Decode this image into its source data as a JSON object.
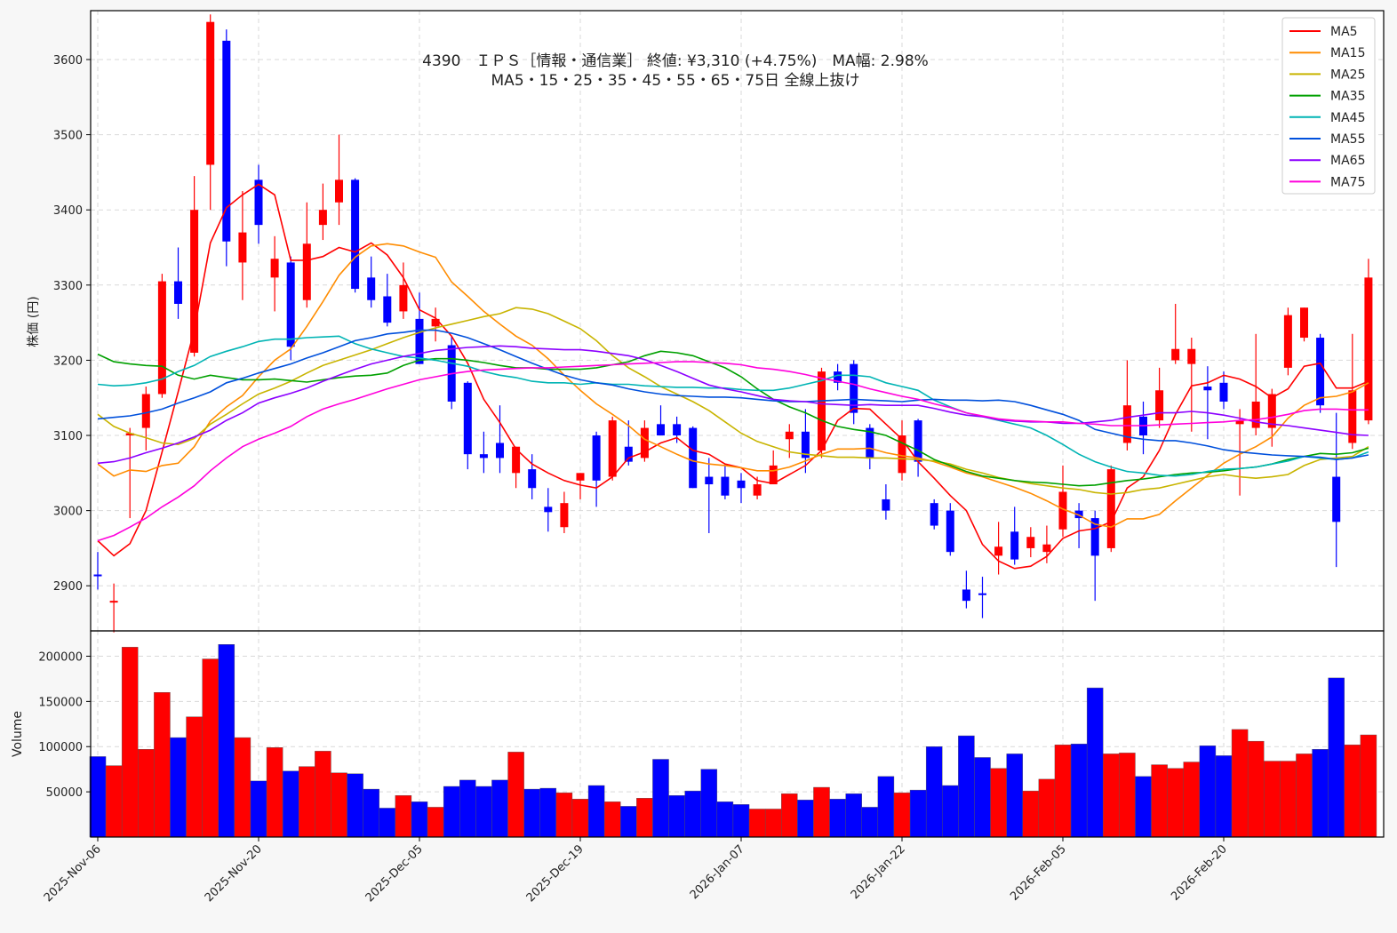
{
  "chart_data": {
    "type": "candlestick",
    "title_line1": "4390　ＩＰＳ［情報・通信業］ 終値: ¥3,310 (+4.75%)　MA幅: 2.98%",
    "title_line2": "MA5・15・25・35・45・55・65・75日 全線上抜け",
    "ylabel_price": "株価 (円)",
    "ylabel_volume": "Volume",
    "price_ylim": [
      2840,
      3665
    ],
    "volume_ylim": [
      0,
      228000
    ],
    "price_ticks": [
      2900,
      3000,
      3100,
      3200,
      3300,
      3400,
      3500,
      3600
    ],
    "volume_ticks": [
      50000,
      100000,
      150000,
      200000
    ],
    "volume_tick_labels": [
      "50000",
      "100000",
      "150000",
      "200000"
    ],
    "x_ticks": [
      {
        "index": 0,
        "label": "2025-Nov-06"
      },
      {
        "index": 10,
        "label": "2025-Nov-20"
      },
      {
        "index": 20,
        "label": "2025-Dec-05"
      },
      {
        "index": 30,
        "label": "2025-Dec-19"
      },
      {
        "index": 40,
        "label": "2026-Jan-07"
      },
      {
        "index": 50,
        "label": "2026-Jan-22"
      },
      {
        "index": 60,
        "label": "2026-Feb-05"
      },
      {
        "index": 70,
        "label": "2026-Feb-20"
      }
    ],
    "legend_position": "top-right",
    "grid": true,
    "up_color": "#ff0000",
    "down_color": "#0000ff",
    "ohlc": [
      [
        2915,
        2945,
        2895,
        2913
      ],
      [
        2880,
        2903,
        2838,
        2880
      ],
      [
        3100,
        3110,
        2990,
        3103
      ],
      [
        3110,
        3165,
        3080,
        3155
      ],
      [
        3155,
        3315,
        3150,
        3305
      ],
      [
        3305,
        3350,
        3255,
        3275
      ],
      [
        3210,
        3445,
        3205,
        3400
      ],
      [
        3460,
        3660,
        3400,
        3650
      ],
      [
        3625,
        3640,
        3325,
        3358
      ],
      [
        3330,
        3425,
        3280,
        3370
      ],
      [
        3440,
        3460,
        3355,
        3380
      ],
      [
        3310,
        3365,
        3265,
        3335
      ],
      [
        3330,
        3338,
        3200,
        3218
      ],
      [
        3280,
        3410,
        3270,
        3355
      ],
      [
        3380,
        3435,
        3360,
        3400
      ],
      [
        3410,
        3500,
        3380,
        3440
      ],
      [
        3440,
        3442,
        3290,
        3295
      ],
      [
        3310,
        3338,
        3270,
        3280
      ],
      [
        3285,
        3315,
        3245,
        3250
      ],
      [
        3265,
        3330,
        3255,
        3300
      ],
      [
        3255,
        3290,
        3195,
        3195
      ],
      [
        3245,
        3270,
        3225,
        3255
      ],
      [
        3220,
        3232,
        3135,
        3145
      ],
      [
        3170,
        3172,
        3055,
        3075
      ],
      [
        3075,
        3105,
        3050,
        3070
      ],
      [
        3090,
        3140,
        3050,
        3070
      ],
      [
        3050,
        3085,
        3030,
        3085
      ],
      [
        3055,
        3075,
        3015,
        3030
      ],
      [
        3005,
        3030,
        2972,
        2998
      ],
      [
        2978,
        3025,
        2970,
        3010
      ],
      [
        3040,
        3050,
        3015,
        3050
      ],
      [
        3100,
        3105,
        3005,
        3040
      ],
      [
        3045,
        3125,
        3040,
        3120
      ],
      [
        3085,
        3120,
        3060,
        3065
      ],
      [
        3070,
        3120,
        3065,
        3110
      ],
      [
        3115,
        3140,
        3100,
        3100
      ],
      [
        3115,
        3125,
        3090,
        3100
      ],
      [
        3110,
        3112,
        3030,
        3030
      ],
      [
        3045,
        3070,
        2970,
        3035
      ],
      [
        3045,
        3060,
        3015,
        3020
      ],
      [
        3040,
        3050,
        3010,
        3030
      ],
      [
        3020,
        3045,
        3015,
        3035
      ],
      [
        3035,
        3080,
        3035,
        3060
      ],
      [
        3095,
        3115,
        3070,
        3105
      ],
      [
        3105,
        3135,
        3050,
        3070
      ],
      [
        3080,
        3190,
        3070,
        3185
      ],
      [
        3185,
        3195,
        3160,
        3170
      ],
      [
        3195,
        3200,
        3115,
        3130
      ],
      [
        3110,
        3115,
        3055,
        3070
      ],
      [
        3015,
        3035,
        2988,
        3000
      ],
      [
        3050,
        3120,
        3040,
        3100
      ],
      [
        3120,
        3122,
        3045,
        3065
      ],
      [
        3010,
        3015,
        2975,
        2980
      ],
      [
        3000,
        3010,
        2940,
        2945
      ],
      [
        2895,
        2920,
        2870,
        2880
      ],
      [
        2890,
        2912,
        2857,
        2888
      ],
      [
        2940,
        2985,
        2915,
        2952
      ],
      [
        2972,
        3005,
        2928,
        2935
      ],
      [
        2950,
        2978,
        2938,
        2965
      ],
      [
        2945,
        2980,
        2930,
        2955
      ],
      [
        2975,
        3060,
        2965,
        3025
      ],
      [
        3000,
        3010,
        2950,
        2990
      ],
      [
        2990,
        3000,
        2880,
        2940
      ],
      [
        2950,
        3060,
        2945,
        3055
      ],
      [
        3090,
        3200,
        3080,
        3140
      ],
      [
        3125,
        3145,
        3075,
        3100
      ],
      [
        3120,
        3190,
        3110,
        3160
      ],
      [
        3200,
        3275,
        3195,
        3215
      ],
      [
        3195,
        3230,
        3105,
        3215
      ],
      [
        3165,
        3192,
        3095,
        3160
      ],
      [
        3170,
        3185,
        3135,
        3145
      ],
      [
        3115,
        3135,
        3020,
        3120
      ],
      [
        3110,
        3235,
        3100,
        3145
      ],
      [
        3110,
        3162,
        3085,
        3155
      ],
      [
        3190,
        3270,
        3180,
        3260
      ],
      [
        3230,
        3270,
        3225,
        3270
      ],
      [
        3230,
        3235,
        3130,
        3140
      ],
      [
        3045,
        3130,
        2925,
        2985
      ],
      [
        3090,
        3235,
        3082,
        3160
      ],
      [
        3120,
        3335,
        3115,
        3310
      ]
    ],
    "volume": [
      89000,
      79000,
      210000,
      97000,
      160000,
      110000,
      133000,
      197000,
      213000,
      110000,
      62000,
      99000,
      73000,
      78000,
      95000,
      71000,
      70000,
      53000,
      32000,
      46000,
      39000,
      33000,
      56000,
      63000,
      56000,
      63000,
      94000,
      53000,
      54000,
      49000,
      42000,
      57000,
      39000,
      34000,
      43000,
      86000,
      46000,
      51000,
      75000,
      39000,
      36000,
      31000,
      31000,
      48000,
      41000,
      55000,
      42000,
      48000,
      33000,
      67000,
      49000,
      52000,
      100000,
      57000,
      112000,
      88000,
      76000,
      92000,
      51000,
      64000,
      102000,
      103000,
      165000,
      92000,
      93000,
      67000,
      80000,
      76000,
      83000,
      101000,
      90000,
      119000,
      106000,
      84000,
      84000,
      92000,
      97000,
      176000,
      102000,
      113000
    ],
    "series": [
      {
        "name": "MA5",
        "color": "#ff0000",
        "values": [
          2960,
          2940,
          2956,
          3000,
          3078,
          3158,
          3240,
          3356,
          3403,
          3420,
          3434,
          3420,
          3333,
          3333,
          3338,
          3350,
          3344,
          3356,
          3340,
          3310,
          3267,
          3256,
          3232,
          3196,
          3148,
          3117,
          3082,
          3062,
          3050,
          3040,
          3034,
          3030,
          3045,
          3070,
          3078,
          3090,
          3097,
          3080,
          3075,
          3062,
          3057,
          3040,
          3036,
          3048,
          3060,
          3080,
          3120,
          3136,
          3135,
          3115,
          3095,
          3065,
          3043,
          3020,
          3000,
          2955,
          2933,
          2923,
          2926,
          2939,
          2963,
          2973,
          2976,
          2985,
          3030,
          3045,
          3080,
          3128,
          3166,
          3170,
          3180,
          3175,
          3165,
          3150,
          3162,
          3192,
          3196,
          3163,
          3163,
          3172
        ]
      },
      {
        "name": "MA15",
        "color": "#ff8c00",
        "values": [
          3062,
          3046,
          3054,
          3052,
          3060,
          3063,
          3085,
          3119,
          3138,
          3153,
          3178,
          3200,
          3215,
          3245,
          3278,
          3313,
          3337,
          3352,
          3355,
          3352,
          3344,
          3337,
          3304,
          3285,
          3265,
          3248,
          3232,
          3220,
          3202,
          3180,
          3160,
          3142,
          3128,
          3113,
          3095,
          3085,
          3075,
          3066,
          3062,
          3060,
          3057,
          3053,
          3053,
          3058,
          3066,
          3075,
          3082,
          3082,
          3083,
          3077,
          3073,
          3070,
          3065,
          3058,
          3050,
          3045,
          3038,
          3031,
          3023,
          3013,
          3002,
          2994,
          2982,
          2978,
          2989,
          2989,
          2995,
          3013,
          3030,
          3047,
          3063,
          3075,
          3085,
          3098,
          3123,
          3140,
          3150,
          3152,
          3158,
          3170
        ]
      },
      {
        "name": "MA25",
        "color": "#c8b400",
        "values": [
          3128,
          3112,
          3103,
          3097,
          3090,
          3088,
          3096,
          3115,
          3128,
          3142,
          3155,
          3163,
          3172,
          3183,
          3193,
          3200,
          3207,
          3214,
          3222,
          3230,
          3237,
          3243,
          3248,
          3253,
          3258,
          3262,
          3270,
          3268,
          3262,
          3252,
          3242,
          3226,
          3206,
          3190,
          3178,
          3165,
          3155,
          3145,
          3133,
          3118,
          3103,
          3092,
          3085,
          3078,
          3075,
          3073,
          3071,
          3071,
          3070,
          3070,
          3069,
          3068,
          3066,
          3062,
          3055,
          3050,
          3044,
          3040,
          3036,
          3033,
          3030,
          3028,
          3024,
          3022,
          3024,
          3028,
          3030,
          3035,
          3040,
          3045,
          3048,
          3045,
          3043,
          3045,
          3048,
          3060,
          3068,
          3070,
          3072,
          3085
        ]
      },
      {
        "name": "MA35",
        "color": "#00a000",
        "values": [
          3208,
          3198,
          3195,
          3193,
          3192,
          3180,
          3175,
          3180,
          3177,
          3174,
          3174,
          3175,
          3173,
          3171,
          3174,
          3177,
          3179,
          3180,
          3183,
          3193,
          3200,
          3202,
          3202,
          3200,
          3197,
          3193,
          3190,
          3190,
          3188,
          3188,
          3188,
          3190,
          3194,
          3198,
          3206,
          3212,
          3210,
          3206,
          3198,
          3190,
          3178,
          3162,
          3148,
          3138,
          3130,
          3120,
          3112,
          3108,
          3105,
          3100,
          3090,
          3080,
          3068,
          3060,
          3052,
          3046,
          3043,
          3040,
          3038,
          3037,
          3035,
          3033,
          3034,
          3037,
          3040,
          3042,
          3045,
          3048,
          3050,
          3051,
          3053,
          3056,
          3058,
          3062,
          3068,
          3072,
          3076,
          3075,
          3077,
          3083
        ]
      },
      {
        "name": "MA45",
        "color": "#00b4b4",
        "values": [
          3168,
          3166,
          3167,
          3170,
          3175,
          3185,
          3193,
          3205,
          3212,
          3218,
          3225,
          3228,
          3228,
          3230,
          3231,
          3232,
          3222,
          3215,
          3210,
          3205,
          3203,
          3200,
          3196,
          3192,
          3185,
          3180,
          3177,
          3172,
          3170,
          3170,
          3168,
          3170,
          3168,
          3168,
          3166,
          3165,
          3164,
          3164,
          3163,
          3163,
          3161,
          3160,
          3160,
          3163,
          3168,
          3173,
          3180,
          3180,
          3178,
          3170,
          3165,
          3160,
          3147,
          3138,
          3130,
          3125,
          3120,
          3115,
          3110,
          3100,
          3088,
          3075,
          3065,
          3058,
          3052,
          3050,
          3047,
          3046,
          3048,
          3052,
          3055,
          3056,
          3058,
          3062,
          3066,
          3072,
          3070,
          3068,
          3070,
          3078
        ]
      },
      {
        "name": "MA55",
        "color": "#0050dc",
        "values": [
          3122,
          3124,
          3126,
          3130,
          3135,
          3143,
          3150,
          3158,
          3170,
          3176,
          3183,
          3189,
          3195,
          3203,
          3210,
          3218,
          3226,
          3230,
          3235,
          3237,
          3240,
          3240,
          3236,
          3230,
          3222,
          3214,
          3205,
          3196,
          3188,
          3180,
          3174,
          3170,
          3167,
          3162,
          3158,
          3155,
          3153,
          3152,
          3151,
          3151,
          3150,
          3148,
          3146,
          3145,
          3145,
          3146,
          3147,
          3148,
          3147,
          3146,
          3145,
          3147,
          3148,
          3147,
          3147,
          3146,
          3147,
          3145,
          3140,
          3134,
          3128,
          3120,
          3108,
          3103,
          3098,
          3095,
          3093,
          3093,
          3090,
          3086,
          3081,
          3078,
          3076,
          3074,
          3073,
          3072,
          3071,
          3068,
          3070,
          3074
        ]
      },
      {
        "name": "MA65",
        "color": "#8c00ff",
        "values": [
          3063,
          3065,
          3070,
          3077,
          3083,
          3090,
          3098,
          3107,
          3120,
          3130,
          3143,
          3150,
          3156,
          3163,
          3172,
          3180,
          3188,
          3195,
          3200,
          3205,
          3209,
          3213,
          3215,
          3217,
          3218,
          3219,
          3218,
          3216,
          3215,
          3214,
          3214,
          3212,
          3209,
          3206,
          3201,
          3193,
          3185,
          3176,
          3167,
          3162,
          3158,
          3153,
          3148,
          3146,
          3145,
          3142,
          3141,
          3140,
          3141,
          3140,
          3140,
          3140,
          3136,
          3131,
          3127,
          3125,
          3121,
          3119,
          3118,
          3118,
          3116,
          3116,
          3118,
          3120,
          3124,
          3127,
          3130,
          3130,
          3132,
          3130,
          3127,
          3123,
          3118,
          3115,
          3113,
          3110,
          3107,
          3104,
          3101,
          3100
        ]
      },
      {
        "name": "MA75",
        "color": "#ff00dc",
        "values": [
          2960,
          2967,
          2978,
          2990,
          3005,
          3018,
          3033,
          3053,
          3070,
          3085,
          3095,
          3103,
          3112,
          3125,
          3135,
          3142,
          3148,
          3155,
          3162,
          3168,
          3174,
          3178,
          3182,
          3185,
          3187,
          3188,
          3189,
          3190,
          3190,
          3191,
          3192,
          3193,
          3194,
          3195,
          3196,
          3197,
          3198,
          3198,
          3197,
          3196,
          3194,
          3190,
          3188,
          3185,
          3181,
          3176,
          3172,
          3168,
          3162,
          3157,
          3152,
          3148,
          3142,
          3137,
          3130,
          3126,
          3122,
          3120,
          3119,
          3118,
          3118,
          3116,
          3115,
          3113,
          3113,
          3113,
          3114,
          3115,
          3116,
          3117,
          3118,
          3120,
          3121,
          3124,
          3128,
          3133,
          3135,
          3135,
          3134,
          3134
        ]
      }
    ]
  }
}
